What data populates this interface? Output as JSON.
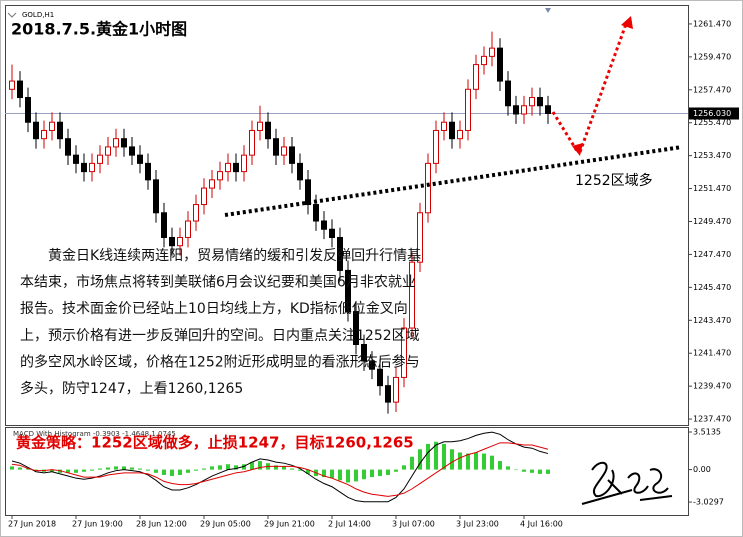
{
  "chart_data": {
    "type": "candlestick",
    "symbol": "GOLD,H1",
    "title": "2018.7.5.黄金1小时图",
    "categories": [
      "27 Jun 2018",
      null,
      null,
      null,
      null,
      null,
      null,
      null,
      "27 Jun 19:00",
      null,
      null,
      null,
      null,
      null,
      null,
      null,
      "28 Jun 12:00",
      null,
      null,
      null,
      null,
      null,
      null,
      null,
      "29 Jun 05:00",
      null,
      null,
      null,
      null,
      null,
      null,
      null,
      "29 Jun 21:00",
      null,
      null,
      null,
      null,
      null,
      null,
      null,
      "2 Jul 14:00",
      null,
      null,
      null,
      null,
      null,
      null,
      null,
      "3 Jul 07:00",
      null,
      null,
      null,
      null,
      null,
      null,
      null,
      "3 Jul 23:00",
      null,
      null,
      null,
      null,
      null,
      null,
      null,
      "4 Jul 16:00",
      null,
      null,
      null
    ],
    "open": [
      1257.5,
      1258,
      1257,
      1255.5,
      1254.5,
      1255,
      1255.5,
      1254.5,
      1253.5,
      1253,
      1252.5,
      1253,
      1253.5,
      1254,
      1254.5,
      1254,
      1253.5,
      1253,
      1252,
      1250,
      1248.5,
      1248,
      1248.5,
      1249.5,
      1250.5,
      1251.5,
      1252,
      1252.5,
      1253,
      1252.5,
      1253.5,
      1255,
      1255.5,
      1254.5,
      1253.5,
      1254,
      1253,
      1252,
      1250.5,
      1249.5,
      1249,
      1248.5,
      1246.5,
      1244,
      1242,
      1241,
      1240.5,
      1239.5,
      1238.5,
      1240,
      1243,
      1247,
      1250,
      1253,
      1255,
      1255.5,
      1254.5,
      1255,
      1257.5,
      1259,
      1259.5,
      1260,
      1258,
      1256.5,
      1256,
      1256.5,
      1257,
      1256.5
    ],
    "high": [
      1259,
      1258.6,
      1257.6,
      1256.1,
      1255.6,
      1256.1,
      1256.1,
      1255.1,
      1254.1,
      1253.6,
      1253.6,
      1254.1,
      1254.6,
      1255.1,
      1255.1,
      1254.6,
      1254.1,
      1253.6,
      1252.6,
      1250.6,
      1249.1,
      1249.1,
      1250.1,
      1251.1,
      1252.1,
      1252.6,
      1253.1,
      1253.6,
      1253.6,
      1254.1,
      1255.6,
      1256.5,
      1256.1,
      1255.1,
      1254.6,
      1254.6,
      1253.6,
      1252.6,
      1251.1,
      1250.1,
      1249.6,
      1249.1,
      1247.1,
      1244.6,
      1242.6,
      1241.6,
      1241.1,
      1240.1,
      1240.6,
      1243.6,
      1247.6,
      1250.6,
      1253.6,
      1255.6,
      1256.1,
      1256.1,
      1255.6,
      1258.1,
      1259.6,
      1260.1,
      1261,
      1260.6,
      1258.6,
      1257.1,
      1257.1,
      1257.6,
      1257.6,
      1257.1
    ],
    "low": [
      1256.9,
      1256.4,
      1254.9,
      1253.9,
      1253.9,
      1254.4,
      1253.9,
      1252.9,
      1252.4,
      1251.9,
      1251.9,
      1252.4,
      1252.9,
      1253.4,
      1253.4,
      1252.9,
      1252.4,
      1251.4,
      1249.4,
      1247.9,
      1247.4,
      1247.4,
      1247.9,
      1248.9,
      1249.9,
      1250.9,
      1251.4,
      1251.9,
      1251.9,
      1251.9,
      1252.9,
      1254.4,
      1253.9,
      1252.9,
      1252.9,
      1252.4,
      1251.4,
      1249.9,
      1248.9,
      1248.4,
      1247.9,
      1245.9,
      1243.4,
      1241.4,
      1240.4,
      1239.9,
      1238.9,
      1237.8,
      1237.9,
      1239.4,
      1242.4,
      1246.4,
      1249.4,
      1252.4,
      1254.4,
      1253.9,
      1253.9,
      1254.4,
      1256.9,
      1258.4,
      1258.9,
      1257.4,
      1255.9,
      1255.4,
      1255.4,
      1255.9,
      1255.9,
      1255.4
    ],
    "close": [
      1258,
      1257,
      1255.5,
      1254.5,
      1255,
      1255.5,
      1254.5,
      1253.5,
      1253,
      1252.5,
      1253,
      1253.5,
      1254,
      1254.5,
      1254,
      1253.5,
      1253,
      1252,
      1250,
      1248.5,
      1248,
      1248.5,
      1249.5,
      1250.5,
      1251.5,
      1252,
      1252.5,
      1253,
      1252.5,
      1253.5,
      1255,
      1255.5,
      1254.5,
      1253.5,
      1254,
      1253,
      1252,
      1250.5,
      1249.5,
      1249,
      1248.5,
      1246.5,
      1244,
      1242,
      1241,
      1240.5,
      1239.5,
      1238.5,
      1240,
      1243,
      1247,
      1250,
      1253,
      1255,
      1255.5,
      1254.5,
      1255,
      1257.5,
      1259,
      1259.5,
      1260,
      1258,
      1256.5,
      1256,
      1256.5,
      1257,
      1256.5,
      1256.03
    ],
    "up_color": "#d00000",
    "down_color": "#000000",
    "ylim": [
      1237.11,
      1262.62
    ],
    "yticks": [
      {
        "value": 1261.47,
        "label": "1261.470"
      },
      {
        "value": 1259.47,
        "label": "1259.470"
      },
      {
        "value": 1257.47,
        "label": "1257.470"
      },
      {
        "value": 1255.47,
        "label": "1255.470"
      },
      {
        "value": 1253.47,
        "label": "1253.470"
      },
      {
        "value": 1251.47,
        "label": "1251.470"
      },
      {
        "value": 1249.47,
        "label": "1249.470"
      },
      {
        "value": 1247.47,
        "label": "1247.470"
      },
      {
        "value": 1245.47,
        "label": "1245.470"
      },
      {
        "value": 1243.47,
        "label": "1243.470"
      },
      {
        "value": 1241.47,
        "label": "1241.470"
      },
      {
        "value": 1239.47,
        "label": "1239.470"
      },
      {
        "value": 1237.47,
        "label": "1237.470"
      }
    ],
    "last_price": {
      "value": 1256.03,
      "label": "1256.030"
    },
    "text_lines": [
      "黄金日K线连续两连阳，贸易情绪的缓和引发反弹回升行情基",
      "本结束，市场焦点将转到美联储6月会议纪要和美国6月非农就业",
      "报告。技术面金价已经站上10日均线上方，KD指标低位金叉向",
      "上，预示价格有进一步反弹回升的空间。日内重点关注1252区域",
      "的多空风水岭区域，价格在1252附近形成明显的看涨形态后参与",
      "多头，防守1247，上看1260,1265"
    ],
    "note": "1252区域多",
    "strategy": "黄金策略：1252区域做多，止损1247，目标1260,1265",
    "macd": {
      "label": "MACD With Histogram -0.3903 -1.4648 1.0745",
      "ylim": [
        -4.24,
        3.98
      ],
      "yticks": [
        3.5135,
        {
          "value": 0,
          "label": "0.00"
        },
        -3.0297
      ],
      "histogram_color": "#33cc33",
      "histogram": [
        0.3,
        0.2,
        0.1,
        -0.1,
        -0.2,
        -0.2,
        -0.3,
        -0.3,
        -0.3,
        -0.2,
        -0.1,
        0.1,
        0.2,
        0.3,
        0.3,
        0.2,
        0.1,
        -0.1,
        -0.3,
        -0.5,
        -0.6,
        -0.5,
        -0.3,
        -0.1,
        0.1,
        0.3,
        0.4,
        0.5,
        0.4,
        0.5,
        0.7,
        0.8,
        0.6,
        0.4,
        0.3,
        0.1,
        -0.1,
        -0.4,
        -0.6,
        -0.7,
        -0.8,
        -1.0,
        -1.2,
        -1.1,
        -0.9,
        -0.7,
        -0.6,
        -0.5,
        -0.2,
        0.4,
        1.2,
        1.9,
        2.4,
        2.6,
        2.4,
        1.9,
        1.6,
        1.5,
        1.6,
        1.5,
        1.3,
        0.8,
        0.3,
        0.0,
        -0.2,
        -0.3,
        -0.4,
        -0.4
      ],
      "macd_color": "#000000",
      "macd": [
        0.8,
        0.6,
        0.2,
        -0.2,
        -0.3,
        -0.2,
        -0.4,
        -0.6,
        -0.8,
        -0.9,
        -0.8,
        -0.6,
        -0.3,
        -0.1,
        0.0,
        -0.1,
        -0.2,
        -0.5,
        -1.0,
        -1.6,
        -1.9,
        -1.9,
        -1.7,
        -1.4,
        -1.0,
        -0.6,
        -0.3,
        0.0,
        0.1,
        0.3,
        0.7,
        1.0,
        0.9,
        0.7,
        0.6,
        0.4,
        0.1,
        -0.4,
        -0.9,
        -1.3,
        -1.6,
        -2.1,
        -2.6,
        -2.9,
        -3.0,
        -3.0,
        -3.0,
        -3.0,
        -2.6,
        -1.8,
        -0.6,
        0.6,
        1.6,
        2.3,
        2.6,
        2.6,
        2.7,
        2.9,
        3.2,
        3.4,
        3.5,
        3.3,
        2.8,
        2.4,
        2.1,
        2.0,
        1.7,
        1.5
      ],
      "signal_color": "#e00000",
      "signal": [
        0.5,
        0.4,
        0.1,
        -0.1,
        -0.1,
        0.0,
        -0.1,
        -0.3,
        -0.5,
        -0.7,
        -0.7,
        -0.7,
        -0.5,
        -0.4,
        -0.3,
        -0.3,
        -0.3,
        -0.4,
        -0.7,
        -1.1,
        -1.3,
        -1.4,
        -1.4,
        -1.3,
        -1.1,
        -0.9,
        -0.7,
        -0.5,
        -0.3,
        -0.2,
        0.0,
        0.2,
        0.3,
        0.3,
        0.3,
        0.3,
        0.2,
        0.0,
        -0.3,
        -0.6,
        -0.8,
        -1.1,
        -1.4,
        -1.8,
        -2.1,
        -2.3,
        -2.4,
        -2.5,
        -2.4,
        -2.2,
        -1.8,
        -1.3,
        -0.8,
        -0.3,
        0.2,
        0.7,
        1.1,
        1.4,
        1.6,
        1.9,
        2.2,
        2.5,
        2.5,
        2.4,
        2.3,
        2.3,
        2.1,
        1.9
      ]
    }
  }
}
